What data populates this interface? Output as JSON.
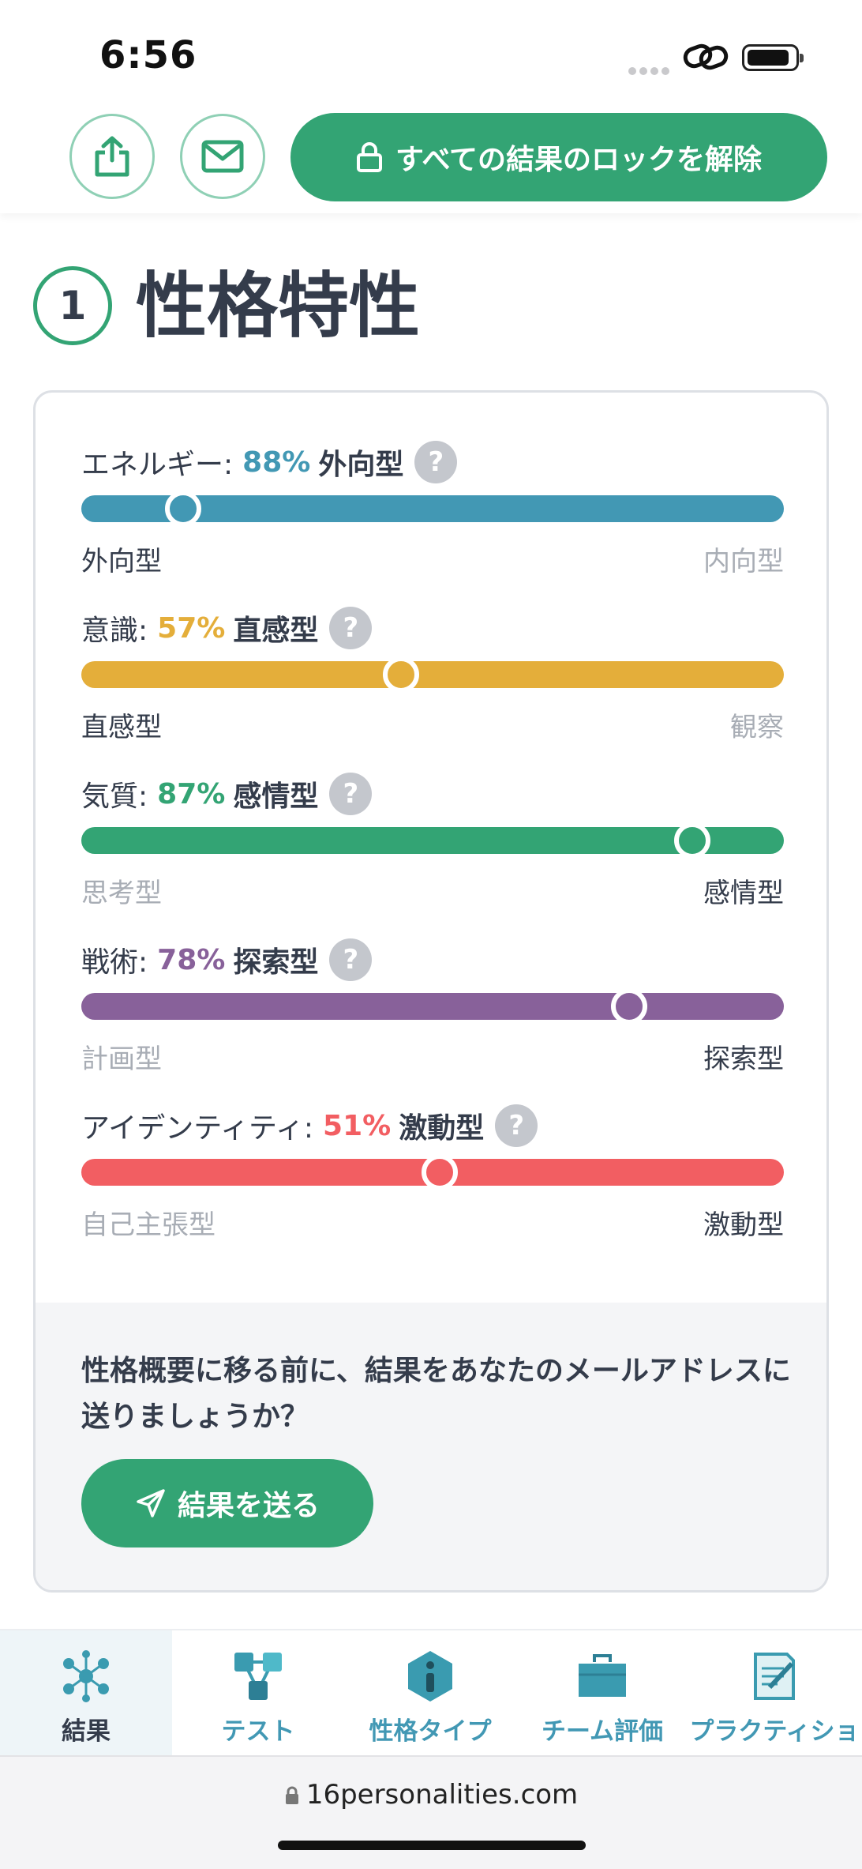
{
  "status_bar": {
    "time": "6:56"
  },
  "top_bar": {
    "unlock_label": "すべての結果のロックを解除"
  },
  "section": {
    "number": "1",
    "title": "性格特性"
  },
  "traits": [
    {
      "name": "エネルギー:",
      "percent": "88%",
      "dominant": "外向型",
      "left_label": "外向型",
      "right_label": "内向型",
      "position": 0.145,
      "color": "#4298b4",
      "active_side": "left"
    },
    {
      "name": "意識:",
      "percent": "57%",
      "dominant": "直感型",
      "left_label": "直感型",
      "right_label": "観察",
      "position": 0.455,
      "color": "#e4ae3a",
      "active_side": "left"
    },
    {
      "name": "気質:",
      "percent": "87%",
      "dominant": "感情型",
      "left_label": "思考型",
      "right_label": "感情型",
      "position": 0.87,
      "color": "#33a474",
      "active_side": "right"
    },
    {
      "name": "戦術:",
      "percent": "78%",
      "dominant": "探索型",
      "left_label": "計画型",
      "right_label": "探索型",
      "position": 0.78,
      "color": "#88619a",
      "active_side": "right"
    },
    {
      "name": "アイデンティティ:",
      "percent": "51%",
      "dominant": "激動型",
      "left_label": "自己主張型",
      "right_label": "激動型",
      "position": 0.51,
      "color": "#f25e62",
      "active_side": "right"
    }
  ],
  "help_glyph": "?",
  "email_prompt": {
    "text": "性格概要に移る前に、結果をあなたのメールアドレスに送りましょうか？",
    "button_label": "結果を送る"
  },
  "bottom_nav": [
    {
      "label": "結果",
      "icon": "results-cube-icon",
      "active": true
    },
    {
      "label": "テスト",
      "icon": "test-network-icon",
      "active": false
    },
    {
      "label": "性格タイプ",
      "icon": "personality-info-icon",
      "active": false
    },
    {
      "label": "チーム評価",
      "icon": "briefcase-icon",
      "active": false
    },
    {
      "label": "プラクティショ",
      "icon": "practitioner-document-icon",
      "active": false
    }
  ],
  "browser": {
    "url": "16personalities.com"
  }
}
